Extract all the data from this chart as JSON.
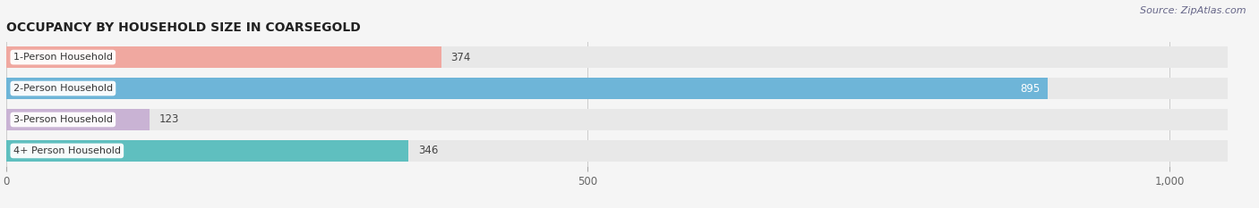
{
  "title": "OCCUPANCY BY HOUSEHOLD SIZE IN COARSEGOLD",
  "source": "Source: ZipAtlas.com",
  "categories": [
    "1-Person Household",
    "2-Person Household",
    "3-Person Household",
    "4+ Person Household"
  ],
  "values": [
    374,
    895,
    123,
    346
  ],
  "bar_colors": [
    "#f0a8a0",
    "#6eb5d8",
    "#c9b3d4",
    "#5fbfbf"
  ],
  "bar_bg_color": "#e8e8e8",
  "label_colors": [
    "#555555",
    "#ffffff",
    "#555555",
    "#555555"
  ],
  "xlim": [
    0,
    1050
  ],
  "xticks": [
    0,
    500,
    1000
  ],
  "xticklabels": [
    "0",
    "500",
    "1,000"
  ],
  "title_fontsize": 10,
  "source_fontsize": 8,
  "tick_fontsize": 8.5,
  "bar_label_fontsize": 8.5,
  "category_fontsize": 8,
  "fig_bg_color": "#f5f5f5",
  "plot_bg_color": "#f5f5f5",
  "bar_height": 0.7,
  "bar_spacing": 1.0
}
